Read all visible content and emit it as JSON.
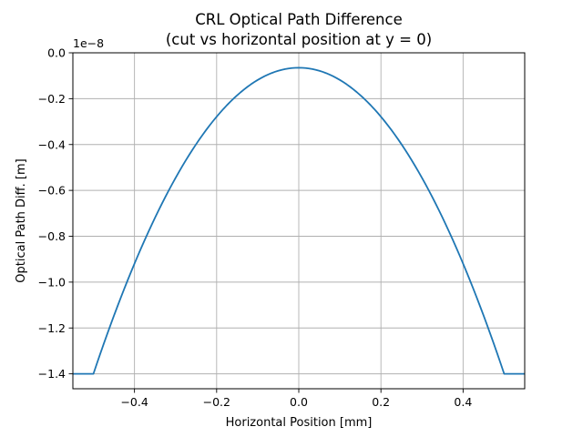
{
  "chart_data": {
    "type": "line",
    "title": "CRL Optical Path Difference",
    "subtitle": "(cut vs horizontal position at y = 0)",
    "xlabel": "Horizontal Position [mm]",
    "ylabel": "Optical Path Diff. [m]",
    "y_offset_label": "1e−8",
    "xlim": [
      -0.55,
      0.55
    ],
    "ylim": [
      -1.465,
      0.0
    ],
    "x_ticks": [
      -0.4,
      -0.2,
      0.0,
      0.2,
      0.4
    ],
    "x_tick_labels": [
      "−0.4",
      "−0.2",
      "0.0",
      "0.2",
      "0.4"
    ],
    "y_ticks": [
      0.0,
      -0.2,
      -0.4,
      -0.6,
      -0.8,
      -1.0,
      -1.2,
      -1.4
    ],
    "y_tick_labels": [
      "0.0",
      "−0.2",
      "−0.4",
      "−0.6",
      "−0.8",
      "−1.0",
      "−1.2",
      "−1.4"
    ],
    "grid": true,
    "series": [
      {
        "color": "#1f77b4",
        "x": [
          -0.55,
          -0.5,
          -0.4,
          -0.3,
          -0.2,
          -0.1,
          0.0,
          0.1,
          0.2,
          0.3,
          0.4,
          0.5,
          0.55
        ],
        "y": [
          -1.4,
          -1.4,
          -0.91,
          -0.55,
          -0.29,
          -0.13,
          -0.065,
          -0.13,
          -0.29,
          -0.55,
          -0.91,
          -1.4,
          -1.4
        ]
      }
    ]
  }
}
